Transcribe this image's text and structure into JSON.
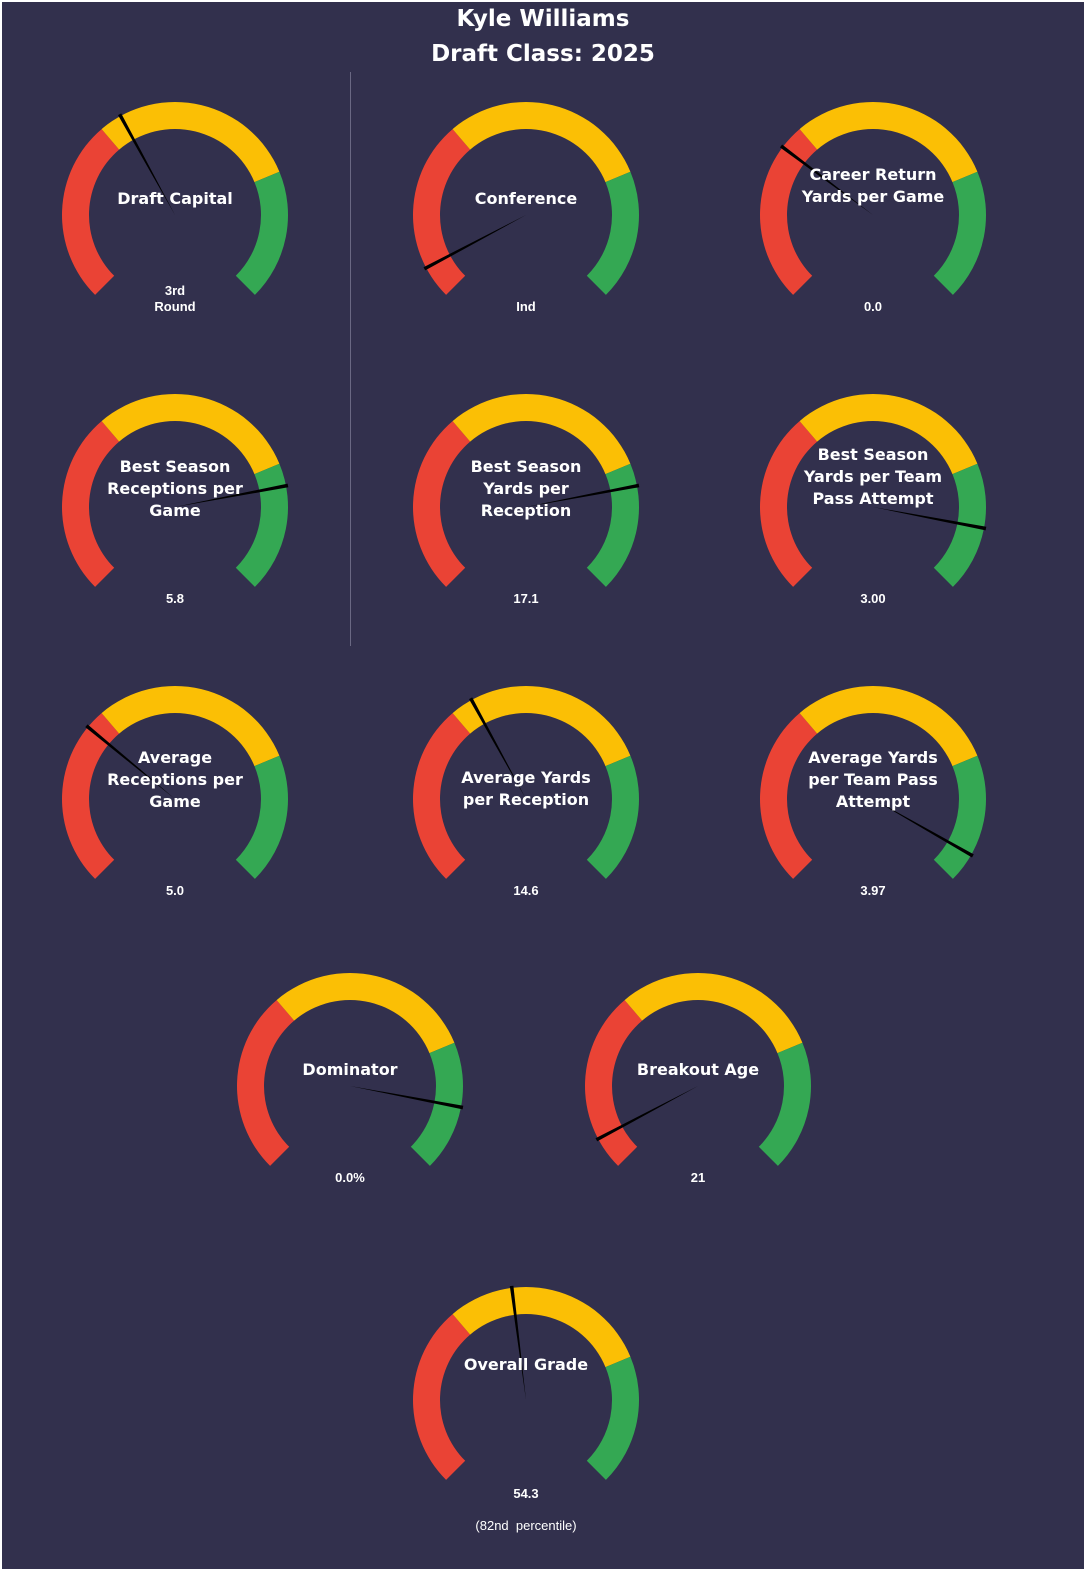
{
  "header": {
    "title_line1": "Kyle Williams",
    "title_line2": "Draft Class: 2025"
  },
  "colors": {
    "background": "#32304d",
    "red": "#ea4335",
    "yellow": "#fbbf05",
    "green": "#34a853",
    "needle": "#000000"
  },
  "chart_data": {
    "type": "gauge",
    "scale": [
      0,
      100
    ],
    "bands": [
      {
        "color": "red",
        "from": 0,
        "to": 35
      },
      {
        "color": "yellow",
        "from": 35,
        "to": 75
      },
      {
        "color": "green",
        "from": 75,
        "to": 100
      }
    ],
    "gauges": [
      {
        "label": "Draft Capital",
        "value_text": "3rd\nRound",
        "needle": 39
      },
      {
        "label": "Conference",
        "value_text": "Ind",
        "needle": 6
      },
      {
        "label": "Career Return Yards per Game",
        "value_text": "0.0",
        "needle": 30
      },
      {
        "label": "Best Season Receptions per Game",
        "value_text": "5.8",
        "needle": 79
      },
      {
        "label": "Best Season Yards per Reception",
        "value_text": "17.1",
        "needle": 79
      },
      {
        "label": "Best Season Yards per Team Pass Attempt",
        "value_text": "3.00",
        "needle": 87
      },
      {
        "label": "Average Receptions per Game",
        "value_text": "5.0",
        "needle": 31
      },
      {
        "label": "Average Yards per Reception",
        "value_text": "14.6",
        "needle": 39
      },
      {
        "label": "Average Yards per Team Pass Attempt",
        "value_text": "3.97",
        "needle": 94
      },
      {
        "label": "Dominator",
        "value_text": "0.0%",
        "needle": 87
      },
      {
        "label": "Breakout Age",
        "value_text": "21",
        "needle": 6
      },
      {
        "label": "Overall Grade",
        "value_text": "54.3",
        "sub_text": "(82nd  percentile)",
        "needle": 47
      }
    ]
  }
}
